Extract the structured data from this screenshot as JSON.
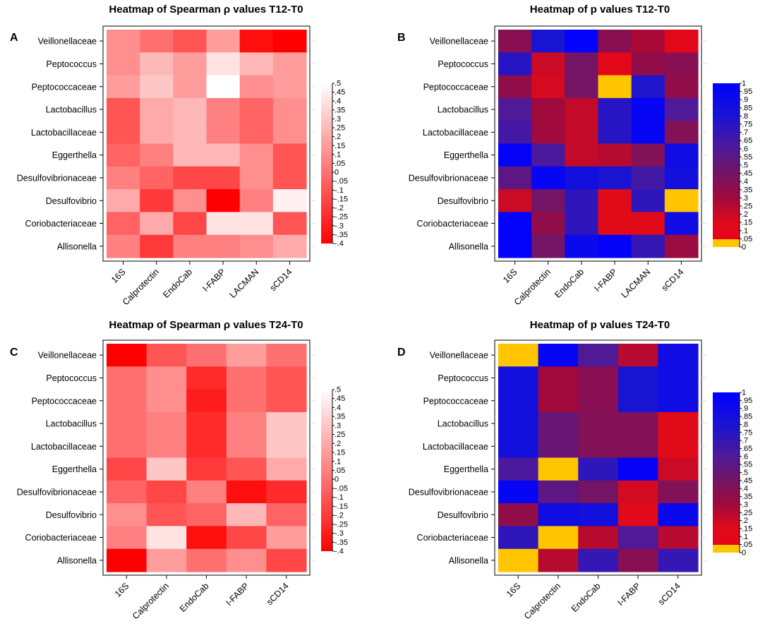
{
  "figure": {
    "name": "four-panel-heatmap-figure"
  },
  "chart_data": [
    {
      "panel_label": "A",
      "type": "heatmap",
      "title": "Heatmap of Spearman ρ values T12-T0",
      "rows": [
        "Veillonellaceae",
        "Peptococcus",
        "Peptococcaceae",
        "Lactobacillus",
        "Lactobacillaceae",
        "Eggerthella",
        "Desulfovibrionaceae",
        "Desulfovibrio",
        "Coriobacteriaceae",
        "Allisonella"
      ],
      "columns": [
        "16S",
        "Calprotectin",
        "EndoCab",
        "I-FABP",
        "LACMAN",
        "sCD14"
      ],
      "values": [
        [
          0.1,
          0.0,
          -0.1,
          0.15,
          -0.35,
          -0.4
        ],
        [
          0.1,
          0.25,
          0.15,
          0.4,
          0.25,
          0.15
        ],
        [
          0.15,
          0.3,
          0.15,
          0.5,
          0.1,
          0.15
        ],
        [
          -0.1,
          0.2,
          0.25,
          0.05,
          -0.05,
          0.1
        ],
        [
          -0.1,
          0.2,
          0.25,
          0.05,
          -0.05,
          0.1
        ],
        [
          -0.05,
          0.05,
          0.25,
          0.25,
          0.1,
          -0.1
        ],
        [
          0.05,
          -0.05,
          -0.15,
          -0.15,
          0.1,
          -0.1
        ],
        [
          0.2,
          -0.2,
          0.1,
          -0.4,
          0.05,
          0.45
        ],
        [
          -0.05,
          0.2,
          -0.15,
          0.4,
          0.4,
          -0.1
        ],
        [
          0.05,
          -0.2,
          0.05,
          0.05,
          0.1,
          0.2
        ]
      ],
      "colorbar": {
        "scale": "white-red",
        "ticks": [
          ".5",
          ".45",
          ".4",
          ".35",
          ".3",
          ".25",
          ".2",
          ".15",
          ".1",
          ".05",
          "0",
          "-.05",
          "-.1",
          "-.15",
          "-.2",
          "-.25",
          "-.3",
          "-.35",
          "-.4"
        ],
        "range": [
          -0.4,
          0.5
        ]
      }
    },
    {
      "panel_label": "B",
      "type": "heatmap",
      "title": "Heatmap of p values T12-T0",
      "rows": [
        "Veillonellaceae",
        "Peptococcus",
        "Peptococcaceae",
        "Lactobacillus",
        "Lactobacillaceae",
        "Eggerthella",
        "Desulfovibrionaceae",
        "Desulfovibrio",
        "Coriobacteriaceae",
        "Allisonella"
      ],
      "columns": [
        "16S",
        "Calprotectin",
        "EndoCab",
        "I-FABP",
        "LACMAN",
        "sCD14"
      ],
      "values": [
        [
          0.38,
          0.8,
          0.98,
          0.38,
          0.28,
          0.12
        ],
        [
          0.75,
          0.2,
          0.45,
          0.12,
          0.35,
          0.38
        ],
        [
          0.35,
          0.18,
          0.45,
          0.03,
          0.78,
          0.35
        ],
        [
          0.6,
          0.3,
          0.22,
          0.75,
          0.95,
          0.6
        ],
        [
          0.65,
          0.3,
          0.22,
          0.75,
          0.95,
          0.4
        ],
        [
          0.97,
          0.62,
          0.22,
          0.25,
          0.4,
          0.88
        ],
        [
          0.55,
          0.95,
          0.85,
          0.8,
          0.65,
          0.85
        ],
        [
          0.2,
          0.45,
          0.72,
          0.15,
          0.72,
          0.02
        ],
        [
          0.98,
          0.35,
          0.72,
          0.15,
          0.15,
          0.88
        ],
        [
          0.98,
          0.45,
          0.92,
          0.97,
          0.7,
          0.32
        ]
      ],
      "colorbar": {
        "scale": "yellow-red-purple-blue",
        "ticks": [
          "1",
          ".95",
          ".9",
          ".85",
          ".8",
          ".75",
          ".7",
          ".65",
          ".6",
          ".55",
          ".5",
          ".45",
          ".4",
          ".35",
          ".3",
          ".25",
          ".2",
          ".15",
          ".1",
          ".05",
          "0"
        ],
        "range": [
          0,
          1
        ]
      }
    },
    {
      "panel_label": "C",
      "type": "heatmap",
      "title": "Heatmap of Spearman ρ values T24-T0",
      "rows": [
        "Veillonellaceae",
        "Peptococcus",
        "Peptococcaceae",
        "Lactobacillus",
        "Lactobacillaceae",
        "Eggerthella",
        "Desulfovibrionaceae",
        "Desulfovibrio",
        "Coriobacteriaceae",
        "Allisonella"
      ],
      "columns": [
        "16S",
        "Calprotectin",
        "EndoCab",
        "I-FABP",
        "sCD14"
      ],
      "values": [
        [
          -0.4,
          -0.1,
          0.0,
          0.15,
          0.0
        ],
        [
          0.0,
          0.1,
          -0.25,
          0.0,
          -0.1
        ],
        [
          0.0,
          0.1,
          -0.3,
          0.0,
          -0.1
        ],
        [
          0.0,
          0.05,
          -0.25,
          0.05,
          0.3
        ],
        [
          0.0,
          0.05,
          -0.25,
          0.05,
          0.3
        ],
        [
          -0.15,
          0.3,
          -0.2,
          -0.1,
          0.2
        ],
        [
          -0.05,
          -0.15,
          0.05,
          -0.35,
          -0.25
        ],
        [
          0.1,
          -0.1,
          -0.05,
          0.25,
          -0.05
        ],
        [
          0.05,
          0.4,
          -0.35,
          -0.15,
          0.15
        ],
        [
          -0.4,
          0.15,
          0.0,
          0.1,
          -0.15
        ]
      ],
      "colorbar": {
        "scale": "white-red",
        "ticks": [
          ".5",
          ".45",
          ".4",
          ".35",
          ".3",
          ".25",
          ".2",
          ".15",
          ".1",
          ".05",
          "0",
          "-.05",
          "-.1",
          "-.15",
          "-.2",
          "-.25",
          "-.3",
          "-.35",
          "-.4"
        ],
        "range": [
          -0.4,
          0.5
        ]
      }
    },
    {
      "panel_label": "D",
      "type": "heatmap",
      "title": "Heatmap of p values T24-T0",
      "rows": [
        "Veillonellaceae",
        "Peptococcus",
        "Peptococcaceae",
        "Lactobacillus",
        "Lactobacillaceae",
        "Eggerthella",
        "Desulfovibrionaceae",
        "Desulfovibrio",
        "Coriobacteriaceae",
        "Allisonella"
      ],
      "columns": [
        "16S",
        "Calprotectin",
        "EndoCab",
        "I-FABP",
        "sCD14"
      ],
      "values": [
        [
          0.02,
          0.95,
          0.6,
          0.25,
          0.88
        ],
        [
          0.85,
          0.3,
          0.38,
          0.8,
          0.88
        ],
        [
          0.85,
          0.3,
          0.38,
          0.8,
          0.88
        ],
        [
          0.85,
          0.5,
          0.4,
          0.4,
          0.15
        ],
        [
          0.85,
          0.5,
          0.4,
          0.4,
          0.15
        ],
        [
          0.62,
          0.02,
          0.72,
          0.97,
          0.2
        ],
        [
          0.95,
          0.55,
          0.45,
          0.18,
          0.4
        ],
        [
          0.35,
          0.88,
          0.85,
          0.15,
          0.92
        ],
        [
          0.72,
          0.02,
          0.25,
          0.6,
          0.25
        ],
        [
          0.02,
          0.25,
          0.7,
          0.38,
          0.7
        ]
      ],
      "colorbar": {
        "scale": "yellow-red-purple-blue",
        "ticks": [
          "1",
          ".95",
          ".9",
          ".85",
          ".8",
          ".75",
          ".7",
          ".65",
          ".6",
          ".55",
          ".5",
          ".45",
          ".4",
          ".35",
          ".3",
          ".25",
          ".2",
          ".15",
          ".1",
          ".05",
          "0"
        ],
        "range": [
          0,
          1
        ]
      }
    }
  ]
}
